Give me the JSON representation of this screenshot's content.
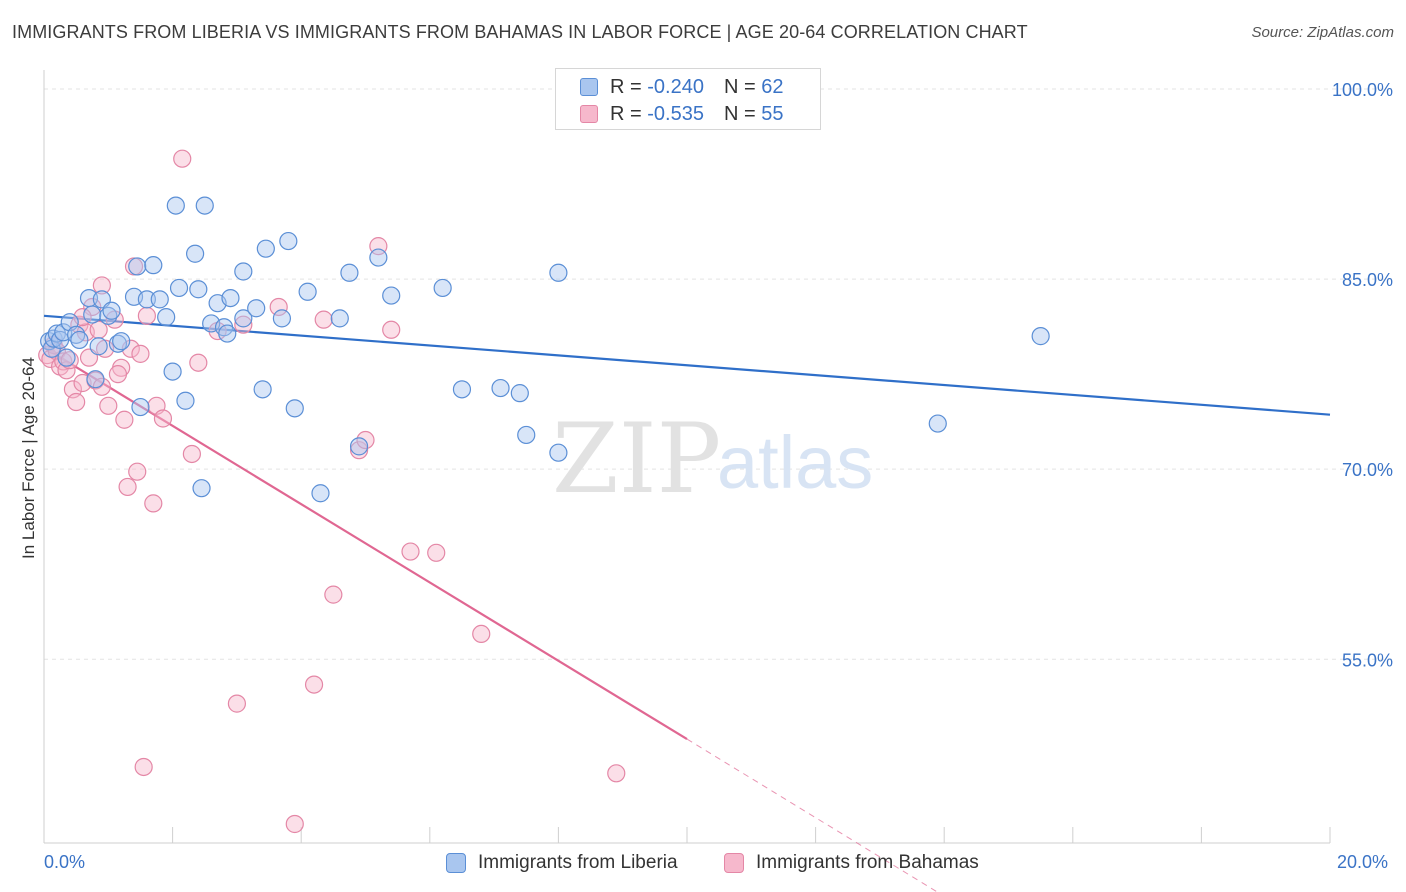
{
  "header": {
    "title": "IMMIGRANTS FROM LIBERIA VS IMMIGRANTS FROM BAHAMAS IN LABOR FORCE | AGE 20-64 CORRELATION CHART",
    "source": "Source: ZipAtlas.com"
  },
  "legend": {
    "rows": [
      {
        "r_label": "R = ",
        "r_value": "-0.240",
        "n_label": "N = ",
        "n_value": "62"
      },
      {
        "r_label": "R = ",
        "r_value": "-0.535",
        "n_label": "N = ",
        "n_value": "55"
      }
    ]
  },
  "bottom_legend": {
    "liberia": "Immigrants from Liberia",
    "bahamas": "Immigrants from Bahamas"
  },
  "watermark": {
    "zip": "ZIP",
    "atlas": "atlas"
  },
  "colors": {
    "liberia_fill": "#a9c6ef",
    "liberia_stroke": "#5b8fd6",
    "liberia_line": "#2f6fc9",
    "bahamas_fill": "#f6b8cc",
    "bahamas_stroke": "#e487a6",
    "bahamas_line": "#e06792",
    "tick_label": "#3a73c6",
    "grid": "#e3e3e3"
  },
  "chart_data": {
    "type": "scatter",
    "title": "IMMIGRANTS FROM LIBERIA VS IMMIGRANTS FROM BAHAMAS IN LABOR FORCE | AGE 20-64 CORRELATION CHART",
    "xlabel": "",
    "ylabel": "In Labor Force | Age 20-64",
    "xlim": [
      0,
      20
    ],
    "ylim": [
      40.5,
      101.5
    ],
    "x_ticks": [
      "0.0%",
      "20.0%"
    ],
    "y_ticks": [
      {
        "value": 55,
        "label": "55.0%"
      },
      {
        "value": 70,
        "label": "70.0%"
      },
      {
        "value": 85,
        "label": "85.0%"
      },
      {
        "value": 100,
        "label": "100.0%"
      }
    ],
    "grid": true,
    "legend_position": "top-center",
    "series": [
      {
        "name": "Immigrants from Liberia",
        "color": "#a9c6ef",
        "r": -0.24,
        "n": 62,
        "trend": {
          "x0": 0,
          "y0": 82.1,
          "x1": 20,
          "y1": 74.3
        },
        "points": [
          [
            0.08,
            80.1
          ],
          [
            0.12,
            79.5
          ],
          [
            0.15,
            80.3
          ],
          [
            0.2,
            80.7
          ],
          [
            0.25,
            80.2
          ],
          [
            0.3,
            80.8
          ],
          [
            0.35,
            78.8
          ],
          [
            0.4,
            81.6
          ],
          [
            0.5,
            80.6
          ],
          [
            0.55,
            80.2
          ],
          [
            0.7,
            83.5
          ],
          [
            0.75,
            82.2
          ],
          [
            0.8,
            77.1
          ],
          [
            0.85,
            79.7
          ],
          [
            0.9,
            83.4
          ],
          [
            1.0,
            82.1
          ],
          [
            1.05,
            82.5
          ],
          [
            1.15,
            79.9
          ],
          [
            1.2,
            80.1
          ],
          [
            1.4,
            83.6
          ],
          [
            1.45,
            86.0
          ],
          [
            1.5,
            74.9
          ],
          [
            1.6,
            83.4
          ],
          [
            1.7,
            86.1
          ],
          [
            1.8,
            83.4
          ],
          [
            1.9,
            82.0
          ],
          [
            2.0,
            77.7
          ],
          [
            2.05,
            90.8
          ],
          [
            2.1,
            84.3
          ],
          [
            2.2,
            75.4
          ],
          [
            2.35,
            87.0
          ],
          [
            2.4,
            84.2
          ],
          [
            2.45,
            68.5
          ],
          [
            2.5,
            90.8
          ],
          [
            2.6,
            81.5
          ],
          [
            2.7,
            83.1
          ],
          [
            2.8,
            81.2
          ],
          [
            2.85,
            80.7
          ],
          [
            2.9,
            83.5
          ],
          [
            3.1,
            85.6
          ],
          [
            3.1,
            81.9
          ],
          [
            3.3,
            82.7
          ],
          [
            3.4,
            76.3
          ],
          [
            3.45,
            87.4
          ],
          [
            3.7,
            81.9
          ],
          [
            3.8,
            88.0
          ],
          [
            3.9,
            74.8
          ],
          [
            4.1,
            84.0
          ],
          [
            4.3,
            68.1
          ],
          [
            4.6,
            81.9
          ],
          [
            4.75,
            85.5
          ],
          [
            4.9,
            71.8
          ],
          [
            5.2,
            86.7
          ],
          [
            5.4,
            83.7
          ],
          [
            6.2,
            84.3
          ],
          [
            6.5,
            76.3
          ],
          [
            7.1,
            76.4
          ],
          [
            7.4,
            76.0
          ],
          [
            7.5,
            72.7
          ],
          [
            8.0,
            71.3
          ],
          [
            8.0,
            85.5
          ],
          [
            13.9,
            73.6
          ],
          [
            15.5,
            80.5
          ]
        ]
      },
      {
        "name": "Immigrants from Bahamas",
        "color": "#f6b8cc",
        "r": -0.535,
        "n": 55,
        "trend": {
          "x0": 0,
          "y0": 79.6,
          "x1": 10.0,
          "y1": 48.7,
          "dashed_to": {
            "x": 14.0,
            "y": 36.3
          }
        },
        "points": [
          [
            0.05,
            79.0
          ],
          [
            0.1,
            78.7
          ],
          [
            0.15,
            79.8
          ],
          [
            0.2,
            79.3
          ],
          [
            0.25,
            78.1
          ],
          [
            0.3,
            78.5
          ],
          [
            0.35,
            77.8
          ],
          [
            0.4,
            78.6
          ],
          [
            0.45,
            76.3
          ],
          [
            0.5,
            75.3
          ],
          [
            0.55,
            81.4
          ],
          [
            0.6,
            76.8
          ],
          [
            0.65,
            80.8
          ],
          [
            0.7,
            78.8
          ],
          [
            0.75,
            82.8
          ],
          [
            0.8,
            77.0
          ],
          [
            0.85,
            81.0
          ],
          [
            0.9,
            84.5
          ],
          [
            0.95,
            79.5
          ],
          [
            1.0,
            75.0
          ],
          [
            1.1,
            81.8
          ],
          [
            1.2,
            78.0
          ],
          [
            1.25,
            73.9
          ],
          [
            1.3,
            68.6
          ],
          [
            1.35,
            79.5
          ],
          [
            1.4,
            86.0
          ],
          [
            1.45,
            69.8
          ],
          [
            1.5,
            79.1
          ],
          [
            1.55,
            46.5
          ],
          [
            1.6,
            82.1
          ],
          [
            1.7,
            67.3
          ],
          [
            1.75,
            75.0
          ],
          [
            1.85,
            74.0
          ],
          [
            2.15,
            94.5
          ],
          [
            2.3,
            71.2
          ],
          [
            3.0,
            51.5
          ],
          [
            3.1,
            81.4
          ],
          [
            3.65,
            82.8
          ],
          [
            3.9,
            42.0
          ],
          [
            4.2,
            53.0
          ],
          [
            4.35,
            81.8
          ],
          [
            4.5,
            60.1
          ],
          [
            4.9,
            71.5
          ],
          [
            5.0,
            72.3
          ],
          [
            5.2,
            87.6
          ],
          [
            5.4,
            81.0
          ],
          [
            5.7,
            63.5
          ],
          [
            6.1,
            63.4
          ],
          [
            6.8,
            57.0
          ],
          [
            8.9,
            46.0
          ],
          [
            2.4,
            78.4
          ],
          [
            1.15,
            77.5
          ],
          [
            0.6,
            82.0
          ],
          [
            0.9,
            76.5
          ],
          [
            2.7,
            80.9
          ]
        ]
      }
    ]
  }
}
